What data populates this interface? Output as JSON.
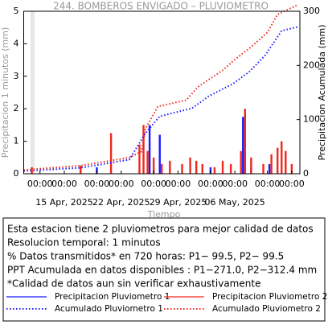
{
  "chart_data": {
    "type": "bar",
    "title": "244. BOMBEROS ENVIGADO – PLUVIOMETRO",
    "x_label": "Tiempo",
    "y_label": "Precipitacion 1 minutos (mm)",
    "y2_label": "Precipitacion Acumulada (mm)",
    "xlim": [
      "2025-04-10 00:00",
      "2025-05-14 00:00"
    ],
    "ylim": [
      0,
      5
    ],
    "yticks": [
      0,
      1,
      2,
      3,
      4,
      5
    ],
    "y2lim": [
      0,
      300
    ],
    "y2ticks": [
      0,
      100,
      200,
      300
    ],
    "xticks": [
      {
        "value": "2025-04-12 00:00",
        "label": "00:00"
      },
      {
        "value": "2025-04-15 00:00",
        "label": "00:00"
      },
      {
        "value": "2025-04-19 00:00",
        "label": "00:00"
      },
      {
        "value": "2025-04-22 00:00",
        "label": "00:00"
      },
      {
        "value": "2025-04-26 00:00",
        "label": "00:00"
      },
      {
        "value": "2025-04-29 00:00",
        "label": "00:00"
      },
      {
        "value": "2025-05-03 00:00",
        "label": "00:00"
      },
      {
        "value": "2025-05-06 00:00",
        "label": "00:00"
      },
      {
        "value": "2025-05-10 00:00",
        "label": "00:00"
      },
      {
        "value": "2025-05-13 00:00",
        "label": "00:00"
      }
    ],
    "xdate_labels": [
      {
        "value": "2025-04-15 00:00",
        "label": "15 Apr, 2025"
      },
      {
        "value": "2025-04-22 00:00",
        "label": "22 Apr, 2025"
      },
      {
        "value": "2025-04-29 00:00",
        "label": "29 Apr, 2025"
      },
      {
        "value": "2025-05-06 00:00",
        "label": "06 May, 2025"
      }
    ],
    "series": [
      {
        "name": "Precipitacion Pluviometro 1",
        "type": "bar",
        "color": "#1a1aff",
        "x": [
          "2025-04-17 00:00",
          "2025-04-19 00:00",
          "2025-04-25 12:00",
          "2025-04-26 18:00",
          "2025-05-03 00:00",
          "2025-05-07 00:00",
          "2025-05-08 00:00",
          "2025-05-10 06:00"
        ],
        "values": [
          0.2,
          0.2,
          1.5,
          1.2,
          0.2,
          1.75,
          0.2,
          0.3
        ]
      },
      {
        "name": "Precipitacion Pluviometro 2",
        "type": "bar",
        "color": "#f0281e",
        "x": [
          "2025-04-11 00:00",
          "2025-04-17 00:00",
          "2025-04-20 18:00",
          "2025-04-24 06:00",
          "2025-04-24 18:00",
          "2025-04-25 06:00",
          "2025-04-26 00:00",
          "2025-04-27 00:00",
          "2025-04-28 00:00",
          "2025-04-29 12:00",
          "2025-04-30 12:00",
          "2025-05-01 06:00",
          "2025-05-02 00:00",
          "2025-05-03 12:00",
          "2025-05-04 12:00",
          "2025-05-05 12:00",
          "2025-05-06 18:00",
          "2025-05-07 06:00",
          "2025-05-08 00:00",
          "2025-05-09 12:00",
          "2025-05-10 12:00",
          "2025-05-11 06:00",
          "2025-05-11 18:00",
          "2025-05-12 06:00",
          "2025-05-13 00:00"
        ],
        "values": [
          0.2,
          0.25,
          1.25,
          0.9,
          1.5,
          0.7,
          0.5,
          0.3,
          0.4,
          0.3,
          0.5,
          0.4,
          0.3,
          0.2,
          0.4,
          0.3,
          0.7,
          2.0,
          0.5,
          0.3,
          0.6,
          0.8,
          1.0,
          0.7,
          0.3
        ]
      },
      {
        "name": "Acumulado Pluviometro 1",
        "type": "line",
        "style": "dotted",
        "axis": "y2",
        "color": "#1a1aff",
        "x": [
          "2025-04-10 00:00",
          "2025-04-17 00:00",
          "2025-04-23 00:00",
          "2025-04-25 00:00",
          "2025-04-26 18:00",
          "2025-04-30 18:00",
          "2025-05-02 18:00",
          "2025-05-05 18:00",
          "2025-05-07 18:00",
          "2025-05-09 18:00",
          "2025-05-11 18:00",
          "2025-05-13 18:00"
        ],
        "values": [
          5,
          11,
          26,
          75,
          106,
          121,
          143,
          166,
          188,
          219,
          264,
          271
        ]
      },
      {
        "name": "Acumulado Pluviometro 2",
        "type": "line",
        "style": "dotted",
        "axis": "y2",
        "color": "#f0281e",
        "x": [
          "2025-04-10 00:00",
          "2025-04-17 00:00",
          "2025-04-23 00:00",
          "2025-04-24 12:00",
          "2025-04-25 00:00",
          "2025-04-26 12:00",
          "2025-04-30 00:00",
          "2025-05-01 12:00",
          "2025-05-04 12:00",
          "2025-05-06 00:00",
          "2025-05-08 00:00",
          "2025-05-10 00:00",
          "2025-05-11 06:00",
          "2025-05-13 18:00"
        ],
        "values": [
          7,
          15,
          30,
          41,
          83,
          124,
          136,
          161,
          191,
          211,
          234,
          261,
          294,
          312
        ]
      }
    ],
    "notes": [
      "Esta estacion tiene 2 pluviometros para mejor calidad de datos",
      "Resolucion temporal: 1 minutos",
      "% Datos transmitidos* en 720 horas: P1− 99.5, P2− 99.5",
      "PPT Acumulada en datos disponibles : P1−271.0, P2−312.4 mm",
      "*Calidad de datos aun sin verificar exhaustivamente"
    ]
  }
}
